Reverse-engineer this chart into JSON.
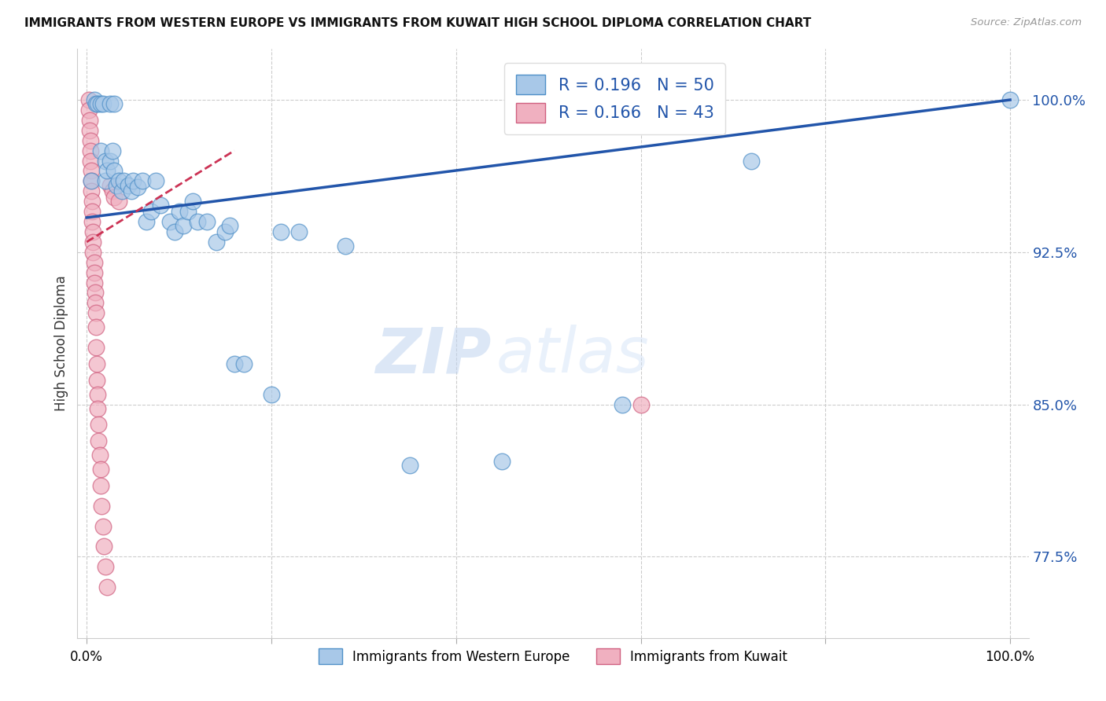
{
  "title": "IMMIGRANTS FROM WESTERN EUROPE VS IMMIGRANTS FROM KUWAIT HIGH SCHOOL DIPLOMA CORRELATION CHART",
  "source": "Source: ZipAtlas.com",
  "ylabel": "High School Diploma",
  "ytick_labels": [
    "77.5%",
    "85.0%",
    "92.5%",
    "100.0%"
  ],
  "ytick_values": [
    0.775,
    0.85,
    0.925,
    1.0
  ],
  "ymin": 0.735,
  "ymax": 1.025,
  "xmin": -0.01,
  "xmax": 1.02,
  "legend_blue_label": "R = 0.196   N = 50",
  "legend_pink_label": "R = 0.166   N = 43",
  "legend_bottom_blue": "Immigrants from Western Europe",
  "legend_bottom_pink": "Immigrants from Kuwait",
  "watermark_zip": "ZIP",
  "watermark_atlas": "atlas",
  "blue_color": "#A8C8E8",
  "pink_color": "#F0B0C0",
  "blue_edge_color": "#5090C8",
  "pink_edge_color": "#D06080",
  "blue_line_color": "#2255AA",
  "pink_line_color": "#CC3355",
  "blue_scatter_x": [
    0.005,
    0.008,
    0.01,
    0.012,
    0.015,
    0.015,
    0.018,
    0.02,
    0.02,
    0.022,
    0.025,
    0.025,
    0.028,
    0.03,
    0.03,
    0.032,
    0.035,
    0.038,
    0.04,
    0.045,
    0.048,
    0.05,
    0.055,
    0.06,
    0.065,
    0.07,
    0.075,
    0.08,
    0.09,
    0.095,
    0.1,
    0.105,
    0.11,
    0.115,
    0.12,
    0.13,
    0.14,
    0.15,
    0.155,
    0.16,
    0.17,
    0.2,
    0.21,
    0.23,
    0.28,
    0.35,
    0.45,
    0.58,
    0.72,
    1.0
  ],
  "blue_scatter_y": [
    0.96,
    1.0,
    0.998,
    0.998,
    0.998,
    0.975,
    0.998,
    0.97,
    0.96,
    0.965,
    0.97,
    0.998,
    0.975,
    0.965,
    0.998,
    0.958,
    0.96,
    0.955,
    0.96,
    0.958,
    0.955,
    0.96,
    0.957,
    0.96,
    0.94,
    0.945,
    0.96,
    0.948,
    0.94,
    0.935,
    0.945,
    0.938,
    0.945,
    0.95,
    0.94,
    0.94,
    0.93,
    0.935,
    0.938,
    0.87,
    0.87,
    0.855,
    0.935,
    0.935,
    0.928,
    0.82,
    0.822,
    0.85,
    0.97,
    1.0
  ],
  "pink_scatter_x": [
    0.002,
    0.002,
    0.003,
    0.003,
    0.004,
    0.004,
    0.004,
    0.005,
    0.005,
    0.005,
    0.006,
    0.006,
    0.006,
    0.007,
    0.007,
    0.007,
    0.008,
    0.008,
    0.008,
    0.009,
    0.009,
    0.01,
    0.01,
    0.01,
    0.011,
    0.011,
    0.012,
    0.012,
    0.013,
    0.013,
    0.014,
    0.015,
    0.015,
    0.016,
    0.018,
    0.019,
    0.02,
    0.022,
    0.025,
    0.028,
    0.03,
    0.035,
    0.6
  ],
  "pink_scatter_y": [
    1.0,
    0.995,
    0.99,
    0.985,
    0.98,
    0.975,
    0.97,
    0.965,
    0.96,
    0.955,
    0.95,
    0.945,
    0.94,
    0.935,
    0.93,
    0.925,
    0.92,
    0.915,
    0.91,
    0.905,
    0.9,
    0.895,
    0.888,
    0.878,
    0.87,
    0.862,
    0.855,
    0.848,
    0.84,
    0.832,
    0.825,
    0.818,
    0.81,
    0.8,
    0.79,
    0.78,
    0.77,
    0.76,
    0.958,
    0.955,
    0.952,
    0.95,
    0.85
  ],
  "blue_trendline_x": [
    0.0,
    1.0
  ],
  "blue_trendline_y": [
    0.942,
    1.0
  ],
  "pink_trendline_x": [
    0.0,
    0.16
  ],
  "pink_trendline_y": [
    0.93,
    0.975
  ],
  "grid_x": [
    0.0,
    0.2,
    0.4,
    0.6,
    0.8,
    1.0
  ]
}
